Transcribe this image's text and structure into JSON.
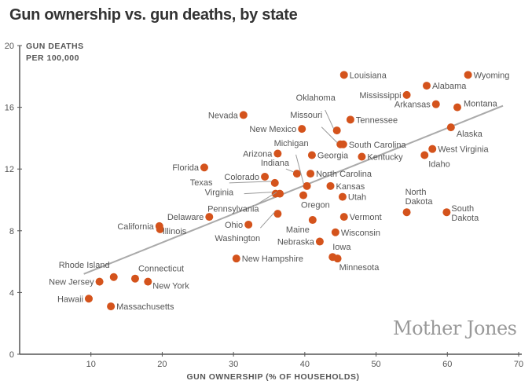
{
  "chart_data": {
    "type": "scatter",
    "title": "Gun ownership vs. gun deaths, by state",
    "xlabel": "GUN OWNERSHIP (% OF HOUSEHOLDS)",
    "ylabel": [
      "GUN DEATHS",
      "PER 100,000"
    ],
    "xlim": [
      0,
      70
    ],
    "ylim": [
      0,
      20
    ],
    "xticks": [
      10,
      20,
      30,
      40,
      50,
      60,
      70
    ],
    "yticks": [
      0,
      4,
      8,
      12,
      16,
      20
    ],
    "grid": false,
    "point_color": "#d4531c",
    "trendline": {
      "x": [
        9.0,
        67.8
      ],
      "y": [
        5.2,
        16.1
      ],
      "color": "#aaaaaa"
    },
    "points": [
      {
        "state": "Louisiana",
        "x": 45.5,
        "y": 18.1
      },
      {
        "state": "Wyoming",
        "x": 62.9,
        "y": 18.1
      },
      {
        "state": "Alabama",
        "x": 57.1,
        "y": 17.4
      },
      {
        "state": "Mississippi",
        "x": 54.3,
        "y": 16.8
      },
      {
        "state": "Arkansas",
        "x": 58.4,
        "y": 16.2
      },
      {
        "state": "Montana",
        "x": 61.4,
        "y": 16.0
      },
      {
        "state": "Nevada",
        "x": 31.4,
        "y": 15.5
      },
      {
        "state": "Tennessee",
        "x": 46.4,
        "y": 15.2
      },
      {
        "state": "Oklahoma",
        "x": 44.5,
        "y": 14.5
      },
      {
        "state": "New Mexico",
        "x": 39.6,
        "y": 14.6
      },
      {
        "state": "Alaska",
        "x": 60.5,
        "y": 14.7
      },
      {
        "state": "Missouri",
        "x": 45.0,
        "y": 13.6
      },
      {
        "state": "South Carolina",
        "x": 45.4,
        "y": 13.6
      },
      {
        "state": "West Virginia",
        "x": 57.9,
        "y": 13.3
      },
      {
        "state": "Idaho",
        "x": 56.8,
        "y": 12.9
      },
      {
        "state": "Arizona",
        "x": 36.2,
        "y": 13.0
      },
      {
        "state": "Georgia",
        "x": 41.0,
        "y": 12.9
      },
      {
        "state": "Kentucky",
        "x": 48.0,
        "y": 12.8
      },
      {
        "state": "Florida",
        "x": 25.9,
        "y": 12.1
      },
      {
        "state": "Indiana",
        "x": 38.9,
        "y": 11.7
      },
      {
        "state": "North Carolina",
        "x": 40.8,
        "y": 11.7
      },
      {
        "state": "Colorado",
        "x": 34.4,
        "y": 11.5
      },
      {
        "state": "Texas",
        "x": 35.8,
        "y": 11.1
      },
      {
        "state": "Michigan",
        "x": 40.3,
        "y": 10.9
      },
      {
        "state": "Kansas",
        "x": 43.6,
        "y": 10.9
      },
      {
        "state": "Virginia",
        "x": 35.9,
        "y": 10.4
      },
      {
        "state": "Pennsylvania",
        "x": 36.5,
        "y": 10.4
      },
      {
        "state": "Oregon",
        "x": 39.8,
        "y": 10.3
      },
      {
        "state": "Utah",
        "x": 45.3,
        "y": 10.2
      },
      {
        "state": "Washington",
        "x": 36.2,
        "y": 9.1
      },
      {
        "state": "Vermont",
        "x": 45.5,
        "y": 8.9
      },
      {
        "state": "Delaware",
        "x": 26.6,
        "y": 8.9
      },
      {
        "state": "Maine",
        "x": 41.1,
        "y": 8.7
      },
      {
        "state": "North Dakota",
        "x": 54.3,
        "y": 9.2
      },
      {
        "state": "South Dakota",
        "x": 59.9,
        "y": 9.2
      },
      {
        "state": "Ohio",
        "x": 32.1,
        "y": 8.4
      },
      {
        "state": "California",
        "x": 19.6,
        "y": 8.3
      },
      {
        "state": "Illinois",
        "x": 19.7,
        "y": 8.1
      },
      {
        "state": "Wisconsin",
        "x": 44.3,
        "y": 7.9
      },
      {
        "state": "Nebraska",
        "x": 42.1,
        "y": 7.3
      },
      {
        "state": "Iowa",
        "x": 43.9,
        "y": 6.3
      },
      {
        "state": "Minnesota",
        "x": 44.6,
        "y": 6.2
      },
      {
        "state": "New Hampshire",
        "x": 30.4,
        "y": 6.2
      },
      {
        "state": "Rhode Island",
        "x": 13.2,
        "y": 5.0
      },
      {
        "state": "Connecticut",
        "x": 16.2,
        "y": 4.9
      },
      {
        "state": "New Jersey",
        "x": 11.2,
        "y": 4.7
      },
      {
        "state": "New York",
        "x": 18.0,
        "y": 4.7
      },
      {
        "state": "Hawaii",
        "x": 9.7,
        "y": 3.6
      },
      {
        "state": "Massachusetts",
        "x": 12.8,
        "y": 3.1
      }
    ]
  },
  "watermark": "Mother Jones"
}
